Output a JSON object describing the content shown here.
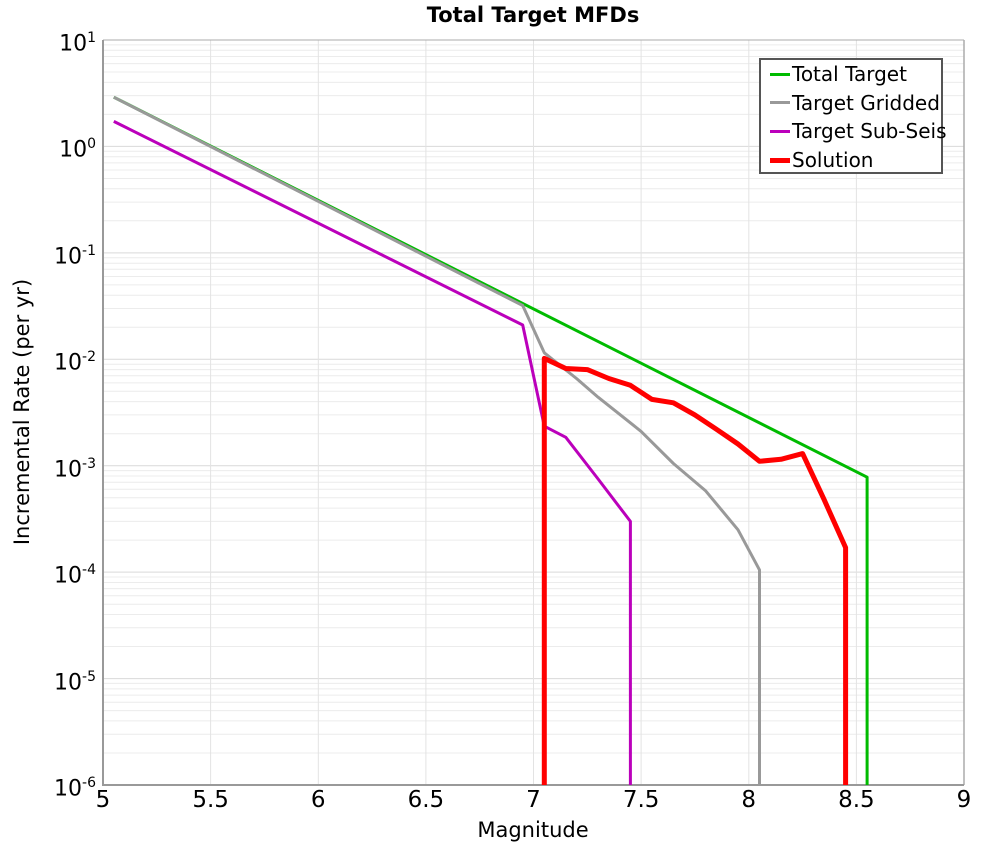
{
  "title": "Total Target MFDs",
  "axes": {
    "xlabel": "Magnitude",
    "ylabel": "Incremental Rate (per yr)",
    "xticks": [
      "5",
      "5.5",
      "6",
      "6.5",
      "7",
      "7.5",
      "8",
      "8.5",
      "9"
    ],
    "ytick_exponents": [
      1,
      0,
      -1,
      -2,
      -3,
      -4,
      -5,
      -6
    ]
  },
  "colors": {
    "background": "#ffffff",
    "grid_major": "#d9d9d9",
    "grid_minor": "#ececec",
    "grid_vertical": "#e3e3e3",
    "spine_main": "#999999",
    "spine_light": "#ababab",
    "legend_border": "#555555",
    "text": "#000000"
  },
  "chart_data": {
    "type": "line",
    "title": "Total Target MFDs",
    "xlabel": "Magnitude",
    "ylabel": "Incremental Rate (per yr)",
    "x_axis": {
      "min": 5,
      "max": 9,
      "tick_step": 0.5
    },
    "y_axis": {
      "scale": "log",
      "min": 1e-06,
      "max": 10
    },
    "grid": true,
    "legend_position": "top-right",
    "series": [
      {
        "name": "Total Target",
        "color": "#00BB00",
        "line_width": 3,
        "points": [
          [
            5.05,
            2.9
          ],
          [
            8.55,
            0.00078
          ],
          [
            8.55,
            1e-06
          ]
        ]
      },
      {
        "name": "Target Gridded",
        "color": "#999999",
        "line_width": 3,
        "points": [
          [
            5.05,
            2.9
          ],
          [
            6.95,
            0.032
          ],
          [
            7.05,
            0.0115
          ],
          [
            7.2,
            0.0066
          ],
          [
            7.3,
            0.0044
          ],
          [
            7.5,
            0.0021
          ],
          [
            7.65,
            0.00105
          ],
          [
            7.8,
            0.00058
          ],
          [
            7.95,
            0.00025
          ],
          [
            8.05,
            0.000105
          ],
          [
            8.05,
            1e-06
          ]
        ]
      },
      {
        "name": "Target Sub-Seis",
        "color": "#BB00BB",
        "line_width": 3,
        "points": [
          [
            5.05,
            1.72
          ],
          [
            6.95,
            0.021
          ],
          [
            7.05,
            0.00235
          ],
          [
            7.15,
            0.00185
          ],
          [
            7.3,
            0.00075
          ],
          [
            7.45,
            0.0003
          ],
          [
            7.45,
            1e-06
          ]
        ]
      },
      {
        "name": "Solution",
        "color": "#FF0000",
        "line_width": 5,
        "points": [
          [
            7.05,
            1e-06
          ],
          [
            7.05,
            0.0102
          ],
          [
            7.15,
            0.0082
          ],
          [
            7.25,
            0.008
          ],
          [
            7.35,
            0.0066
          ],
          [
            7.45,
            0.0057
          ],
          [
            7.55,
            0.0042
          ],
          [
            7.65,
            0.0039
          ],
          [
            7.75,
            0.003
          ],
          [
            7.85,
            0.0022
          ],
          [
            7.95,
            0.0016
          ],
          [
            8.05,
            0.0011
          ],
          [
            8.15,
            0.00115
          ],
          [
            8.25,
            0.0013
          ],
          [
            8.35,
            0.00048
          ],
          [
            8.45,
            0.00017
          ],
          [
            8.45,
            1e-06
          ]
        ]
      }
    ]
  }
}
